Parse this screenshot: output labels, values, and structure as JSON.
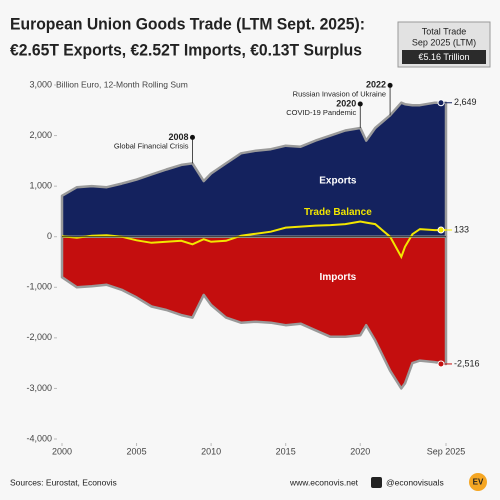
{
  "chart_data": {
    "type": "area",
    "title_lines": [
      "European Union Goods Trade (LTM Sept. 2025):",
      "€2.65T Exports, €2.52T Imports, €0.13T Surplus"
    ],
    "summary_box": [
      "Total Trade",
      "Sep 2025 (LTM)",
      "€5.16 Trillion"
    ],
    "y_axis_label": "Billion Euro, 12-Month Rolling Sum",
    "source": "Sources: Eurostat, Econovis",
    "website": "www.econovis.net",
    "handle": "@econovisuals",
    "logo": "EV",
    "x": [
      2000,
      2001,
      2002,
      2003,
      2004,
      2005,
      2006,
      2007,
      2008,
      2008.75,
      2009.5,
      2010,
      2011,
      2012,
      2013,
      2014,
      2015,
      2016,
      2017,
      2018,
      2019,
      2020,
      2020.4,
      2021,
      2022,
      2022.75,
      2023,
      2023.5,
      2024,
      2025,
      2025.75
    ],
    "series": [
      {
        "name": "Exports",
        "color": "#14225e",
        "end_label": "2,649",
        "values": [
          810,
          980,
          1000,
          980,
          1050,
          1130,
          1230,
          1330,
          1420,
          1450,
          1100,
          1250,
          1450,
          1650,
          1700,
          1730,
          1800,
          1780,
          1900,
          2000,
          2100,
          2150,
          1900,
          2150,
          2400,
          2650,
          2620,
          2600,
          2600,
          2650,
          2649
        ]
      },
      {
        "name": "Imports",
        "color": "#c40e0e",
        "end_label": "-2,516",
        "values": [
          -800,
          -1000,
          -980,
          -950,
          -1050,
          -1200,
          -1380,
          -1450,
          -1550,
          -1600,
          -1150,
          -1350,
          -1600,
          -1700,
          -1680,
          -1700,
          -1750,
          -1720,
          -1850,
          -1980,
          -1980,
          -1950,
          -1750,
          -2050,
          -2650,
          -3000,
          -2900,
          -2500,
          -2450,
          -2480,
          -2516
        ]
      },
      {
        "name": "Trade Balance",
        "color": "#f2e600",
        "end_label": "133",
        "values": [
          10,
          -20,
          20,
          30,
          0,
          -70,
          -120,
          -100,
          -80,
          -150,
          -50,
          -100,
          -80,
          20,
          60,
          100,
          180,
          200,
          220,
          230,
          250,
          300,
          280,
          250,
          0,
          -400,
          -200,
          50,
          150,
          130,
          133
        ]
      }
    ],
    "annotations": [
      {
        "label": "2008",
        "text": "Global Financial Crisis",
        "x": 2008.75
      },
      {
        "label": "2020",
        "text": "COVID-19 Pandemic",
        "x": 2020
      },
      {
        "label": "2022",
        "text": "Russian Invasion of Ukraine",
        "x": 2022
      }
    ],
    "xlim": [
      2000,
      2025.75
    ],
    "xticks": [
      2000,
      2005,
      2010,
      2015,
      2020,
      {
        "value": 2025.75,
        "label": "Sep 2025"
      }
    ],
    "ylim": [
      -4000,
      3000
    ],
    "yticks": [
      {
        "value": 3000,
        "label": "3,000"
      },
      {
        "value": 2000,
        "label": "2,000"
      },
      {
        "value": 1000,
        "label": "1,000"
      },
      0,
      {
        "value": -1000,
        "label": "-1,000"
      },
      {
        "value": -2000,
        "label": "-2,000"
      },
      {
        "value": -3000,
        "label": "-3,000"
      },
      {
        "value": -4000,
        "label": "-4,000"
      }
    ]
  }
}
